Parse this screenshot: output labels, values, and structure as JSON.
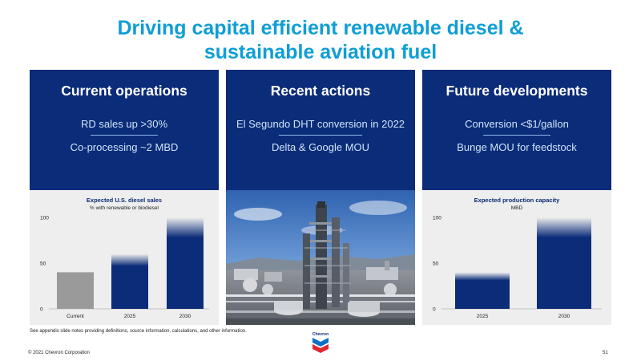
{
  "slide": {
    "title_line1": "Driving capital efficient renewable diesel &",
    "title_line2": "sustainable aviation fuel",
    "footnote": "See appendix slide notes providing definitions, source information, calculations, and other information.",
    "copyright": "© 2021 Chevron Corporation",
    "page_number": "51",
    "logo_text": "Chevron",
    "accent_color": "#0f9ed5",
    "panel_color": "#0b2c79",
    "photo_description": "refinery-photo"
  },
  "panels": [
    {
      "heading": "Current operations",
      "line1": "RD sales up >30%",
      "line2": "Co-processing ~2 MBD"
    },
    {
      "heading": "Recent actions",
      "line1": "El Segundo DHT conversion in 2022",
      "line2": "Delta & Google MOU"
    },
    {
      "heading": "Future developments",
      "line1": "Conversion <$1/gallon",
      "line2": "Bunge MOU for feedstock"
    }
  ],
  "chart_data": [
    {
      "type": "bar",
      "title": "Expected U.S. diesel sales",
      "subtitle": "% with renewable or biodiesel",
      "categories": [
        "Current",
        "2025",
        "2030"
      ],
      "values": [
        40,
        60,
        100
      ],
      "ylim": [
        0,
        100
      ],
      "yticks": [
        "0",
        "50",
        "100"
      ],
      "colors": [
        "#9a9a9a",
        "#0b2c79",
        "#0b2c79"
      ],
      "grid": false
    },
    {
      "type": "bar",
      "title": "Expected production capacity",
      "subtitle": "MBD",
      "categories": [
        "2025",
        "2030"
      ],
      "values": [
        40,
        100
      ],
      "ylim": [
        0,
        100
      ],
      "yticks": [
        "0",
        "50",
        "100"
      ],
      "colors": [
        "#0b2c79",
        "#0b2c79"
      ],
      "grid": false
    }
  ]
}
